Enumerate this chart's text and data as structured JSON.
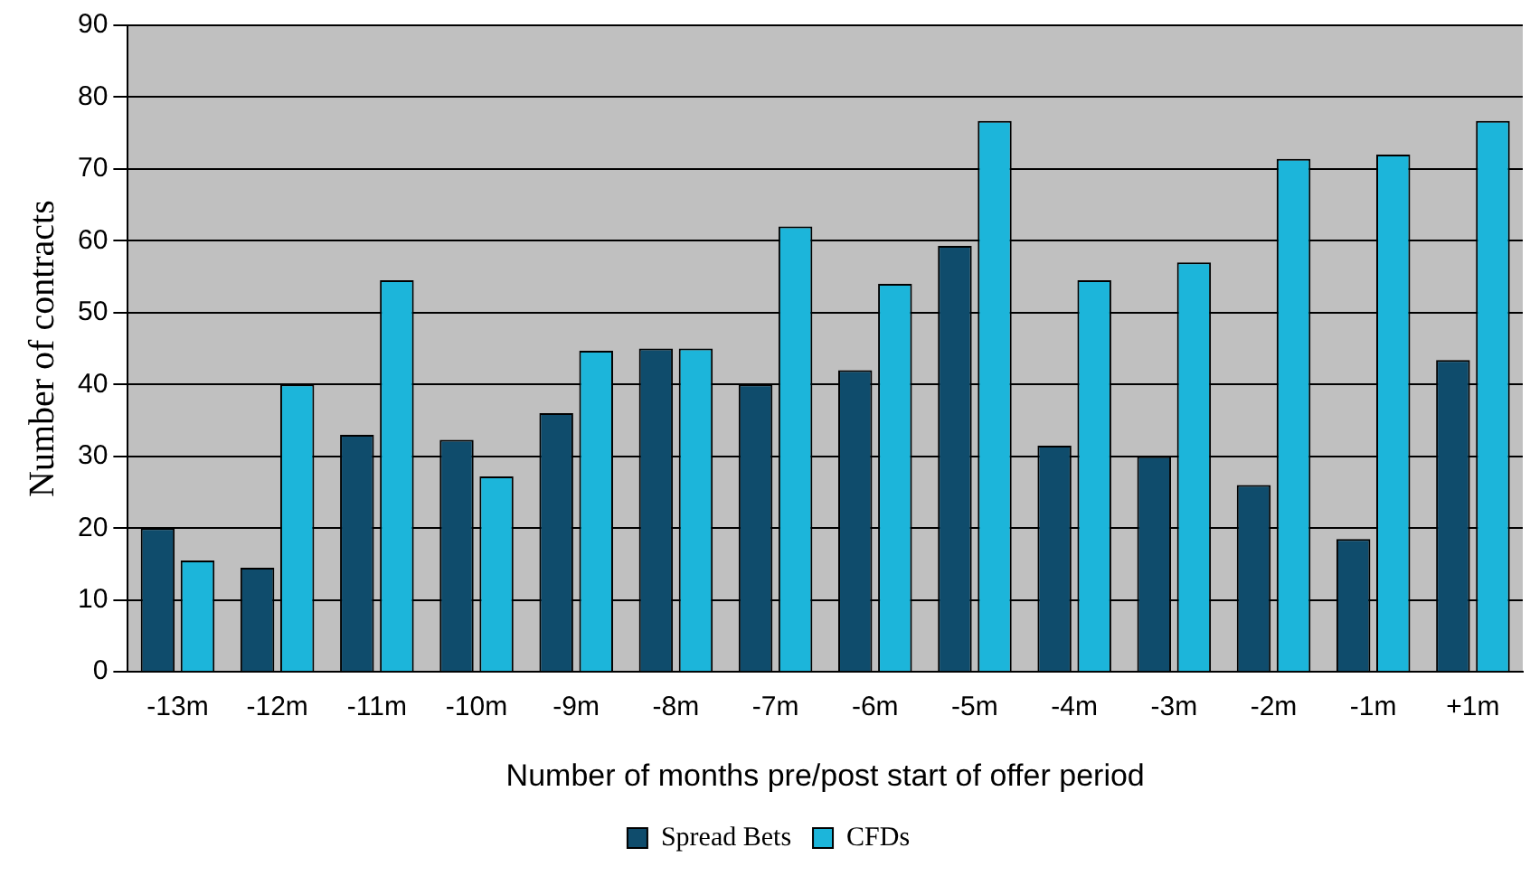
{
  "chart_data": {
    "type": "bar",
    "xlabel": "Number of months pre/post start of offer period",
    "ylabel": "Number of contracts",
    "categories": [
      "-13m",
      "-12m",
      "-11m",
      "-10m",
      "-9m",
      "-8m",
      "-7m",
      "-6m",
      "-5m",
      "-4m",
      "-3m",
      "-2m",
      "-1m",
      "+1m"
    ],
    "series": [
      {
        "name": "Spread Bets",
        "color": "#0f4c6c",
        "values": [
          20,
          14.5,
          33,
          32.3,
          36,
          45,
          40,
          42,
          59.3,
          31.5,
          30,
          26,
          18.5,
          43.4
        ]
      },
      {
        "name": "CFDs",
        "color": "#1cb5da",
        "values": [
          15.5,
          40,
          54.5,
          27.2,
          44.7,
          45,
          62,
          54,
          76.7,
          54.5,
          57,
          71.4,
          72,
          76.7
        ]
      }
    ],
    "ylim": [
      0,
      90
    ],
    "yticks": [
      0,
      10,
      20,
      30,
      40,
      50,
      60,
      70,
      80,
      90
    ],
    "grid": "y",
    "legend": "bottom"
  }
}
